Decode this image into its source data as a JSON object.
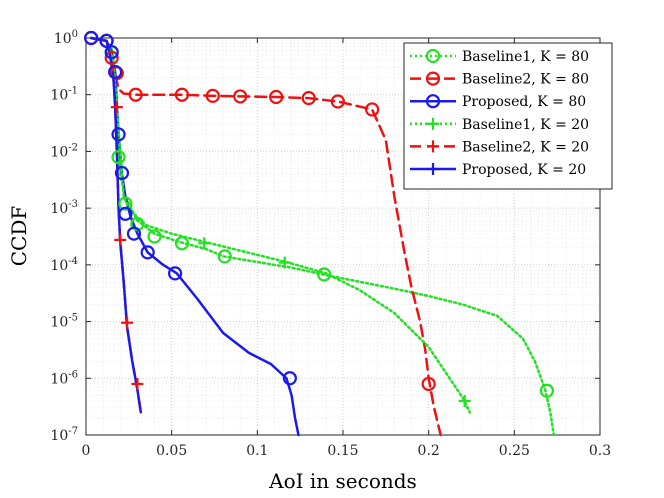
{
  "chart_data": {
    "type": "line",
    "title": "",
    "xlabel": "AoI in seconds",
    "ylabel": "CCDF",
    "xlim": [
      0,
      0.3
    ],
    "ylim_log10": [
      -7,
      0
    ],
    "yscale": "log",
    "grid": true,
    "legend_location": "top-right",
    "x_ticks": [
      {
        "value": 0,
        "label": "0"
      },
      {
        "value": 0.05,
        "label": "0.05"
      },
      {
        "value": 0.1,
        "label": "0.1"
      },
      {
        "value": 0.15,
        "label": "0.15"
      },
      {
        "value": 0.2,
        "label": "0.2"
      },
      {
        "value": 0.25,
        "label": "0.25"
      },
      {
        "value": 0.3,
        "label": "0.3"
      }
    ],
    "y_ticks": [
      {
        "exp": 0,
        "base": "10",
        "sup": "0"
      },
      {
        "exp": -1,
        "base": "10",
        "sup": "-1"
      },
      {
        "exp": -2,
        "base": "10",
        "sup": "-2"
      },
      {
        "exp": -3,
        "base": "10",
        "sup": "-3"
      },
      {
        "exp": -4,
        "base": "10",
        "sup": "-4"
      },
      {
        "exp": -5,
        "base": "10",
        "sup": "-5"
      },
      {
        "exp": -6,
        "base": "10",
        "sup": "-6"
      },
      {
        "exp": -7,
        "base": "10",
        "sup": "-7"
      }
    ],
    "series": [
      {
        "name": "Baseline1",
        "k": "K = 80",
        "color": "#22e022",
        "dash": "dotted",
        "marker": "circle",
        "points": [
          [
            0.003,
            0
          ],
          [
            0.012,
            -0.05
          ],
          [
            0.015,
            -0.2
          ],
          [
            0.016,
            -0.5
          ],
          [
            0.017,
            -1.0
          ],
          [
            0.018,
            -1.5
          ],
          [
            0.019,
            -2.0
          ],
          [
            0.02,
            -2.4
          ],
          [
            0.022,
            -2.7
          ],
          [
            0.025,
            -2.92
          ],
          [
            0.03,
            -3.22
          ],
          [
            0.04,
            -3.45
          ],
          [
            0.055,
            -3.6
          ],
          [
            0.07,
            -3.72
          ],
          [
            0.08,
            -3.85
          ],
          [
            0.1,
            -3.95
          ],
          [
            0.12,
            -4.05
          ],
          [
            0.14,
            -4.18
          ],
          [
            0.16,
            -4.3
          ],
          [
            0.18,
            -4.42
          ],
          [
            0.2,
            -4.55
          ],
          [
            0.22,
            -4.7
          ],
          [
            0.24,
            -4.9
          ],
          [
            0.255,
            -5.3
          ],
          [
            0.262,
            -5.7
          ],
          [
            0.268,
            -6.2
          ],
          [
            0.271,
            -6.6
          ],
          [
            0.273,
            -7
          ]
        ],
        "marker_points": [
          [
            0.003,
            0
          ],
          [
            0.012,
            -0.05
          ],
          [
            0.015,
            -0.25
          ],
          [
            0.019,
            -2.1
          ],
          [
            0.023,
            -2.92
          ],
          [
            0.03,
            -3.28
          ],
          [
            0.04,
            -3.5
          ],
          [
            0.056,
            -3.62
          ],
          [
            0.081,
            -3.85
          ],
          [
            0.139,
            -4.17
          ],
          [
            0.269,
            -6.22
          ]
        ]
      },
      {
        "name": "Baseline2",
        "k": "K = 80",
        "color": "#ee1111",
        "dash": "dashed",
        "marker": "circle",
        "points": [
          [
            0.003,
            0
          ],
          [
            0.012,
            -0.05
          ],
          [
            0.015,
            -0.3
          ],
          [
            0.017,
            -0.62
          ],
          [
            0.019,
            -0.9
          ],
          [
            0.022,
            -0.98
          ],
          [
            0.03,
            -1.0
          ],
          [
            0.056,
            -1.0
          ],
          [
            0.074,
            -1.02
          ],
          [
            0.09,
            -1.03
          ],
          [
            0.111,
            -1.04
          ],
          [
            0.13,
            -1.06
          ],
          [
            0.147,
            -1.12
          ],
          [
            0.167,
            -1.26
          ],
          [
            0.175,
            -1.8
          ],
          [
            0.18,
            -2.8
          ],
          [
            0.186,
            -3.8
          ],
          [
            0.19,
            -4.4
          ],
          [
            0.195,
            -5.0
          ],
          [
            0.198,
            -5.5
          ],
          [
            0.2,
            -6.0
          ],
          [
            0.203,
            -6.5
          ],
          [
            0.207,
            -7
          ]
        ],
        "marker_points": [
          [
            0.003,
            0
          ],
          [
            0.012,
            -0.05
          ],
          [
            0.015,
            -0.35
          ],
          [
            0.018,
            -0.62
          ],
          [
            0.029,
            -1.0
          ],
          [
            0.056,
            -1.0
          ],
          [
            0.074,
            -1.02
          ],
          [
            0.09,
            -1.03
          ],
          [
            0.111,
            -1.04
          ],
          [
            0.13,
            -1.06
          ],
          [
            0.147,
            -1.12
          ],
          [
            0.167,
            -1.26
          ],
          [
            0.2,
            -6.1
          ]
        ]
      },
      {
        "name": "Proposed",
        "k": "K = 80",
        "color": "#1a1aee",
        "dash": "solid",
        "marker": "circle",
        "points": [
          [
            0.003,
            0
          ],
          [
            0.012,
            -0.05
          ],
          [
            0.015,
            -0.25
          ],
          [
            0.017,
            -0.6
          ],
          [
            0.019,
            -1.7
          ],
          [
            0.021,
            -2.4
          ],
          [
            0.023,
            -2.8
          ],
          [
            0.026,
            -3.15
          ],
          [
            0.03,
            -3.45
          ],
          [
            0.036,
            -3.78
          ],
          [
            0.045,
            -4.0
          ],
          [
            0.053,
            -4.15
          ],
          [
            0.065,
            -4.6
          ],
          [
            0.08,
            -5.2
          ],
          [
            0.095,
            -5.55
          ],
          [
            0.108,
            -5.75
          ],
          [
            0.117,
            -6.0
          ],
          [
            0.12,
            -6.3
          ],
          [
            0.122,
            -6.7
          ],
          [
            0.124,
            -7
          ]
        ],
        "marker_points": [
          [
            0.003,
            0
          ],
          [
            0.012,
            -0.05
          ],
          [
            0.015,
            -0.25
          ],
          [
            0.017,
            -0.6
          ],
          [
            0.019,
            -1.7
          ],
          [
            0.021,
            -2.38
          ],
          [
            0.023,
            -3.1
          ],
          [
            0.028,
            -3.45
          ],
          [
            0.036,
            -3.78
          ],
          [
            0.052,
            -4.15
          ],
          [
            0.119,
            -6.0
          ]
        ]
      },
      {
        "name": "Baseline1",
        "k": "K = 20",
        "color": "#22e022",
        "dash": "dotted",
        "marker": "plus",
        "points": [
          [
            0.003,
            0
          ],
          [
            0.012,
            -0.05
          ],
          [
            0.016,
            -0.4
          ],
          [
            0.018,
            -1.2
          ],
          [
            0.02,
            -2.0
          ],
          [
            0.022,
            -2.8
          ],
          [
            0.026,
            -3.05
          ],
          [
            0.035,
            -3.3
          ],
          [
            0.05,
            -3.45
          ],
          [
            0.07,
            -3.6
          ],
          [
            0.09,
            -3.75
          ],
          [
            0.117,
            -3.95
          ],
          [
            0.14,
            -4.15
          ],
          [
            0.16,
            -4.45
          ],
          [
            0.18,
            -4.85
          ],
          [
            0.2,
            -5.45
          ],
          [
            0.21,
            -5.9
          ],
          [
            0.22,
            -6.35
          ],
          [
            0.224,
            -6.6
          ]
        ],
        "marker_points": [
          [
            0.069,
            -3.62
          ],
          [
            0.116,
            -3.96
          ],
          [
            0.221,
            -6.4
          ]
        ]
      },
      {
        "name": "Baseline2",
        "k": "K = 20",
        "color": "#ee1111",
        "dash": "dashed",
        "marker": "plus",
        "points": [
          [
            0.003,
            0
          ],
          [
            0.012,
            -0.05
          ],
          [
            0.014,
            -0.3
          ],
          [
            0.016,
            -0.7
          ],
          [
            0.017,
            -1.2
          ],
          [
            0.018,
            -2.0
          ],
          [
            0.019,
            -3.0
          ],
          [
            0.02,
            -3.6
          ],
          [
            0.022,
            -4.3
          ],
          [
            0.024,
            -5.1
          ],
          [
            0.027,
            -5.7
          ],
          [
            0.03,
            -6.2
          ],
          [
            0.032,
            -6.6
          ]
        ],
        "marker_points": [
          [
            0.018,
            -1.22
          ],
          [
            0.02,
            -3.56
          ],
          [
            0.024,
            -5.02
          ],
          [
            0.03,
            -6.1
          ]
        ]
      },
      {
        "name": "Proposed",
        "k": "K = 20",
        "color": "#1a1aee",
        "dash": "solid",
        "marker": "plus",
        "points": [
          [
            0.003,
            0
          ],
          [
            0.012,
            -0.05
          ],
          [
            0.014,
            -0.3
          ],
          [
            0.016,
            -0.7
          ],
          [
            0.017,
            -1.2
          ],
          [
            0.018,
            -2.0
          ],
          [
            0.019,
            -3.0
          ],
          [
            0.02,
            -3.6
          ],
          [
            0.022,
            -4.3
          ],
          [
            0.024,
            -5.1
          ],
          [
            0.027,
            -5.7
          ],
          [
            0.03,
            -6.2
          ],
          [
            0.032,
            -6.6
          ]
        ],
        "marker_points": []
      }
    ]
  }
}
